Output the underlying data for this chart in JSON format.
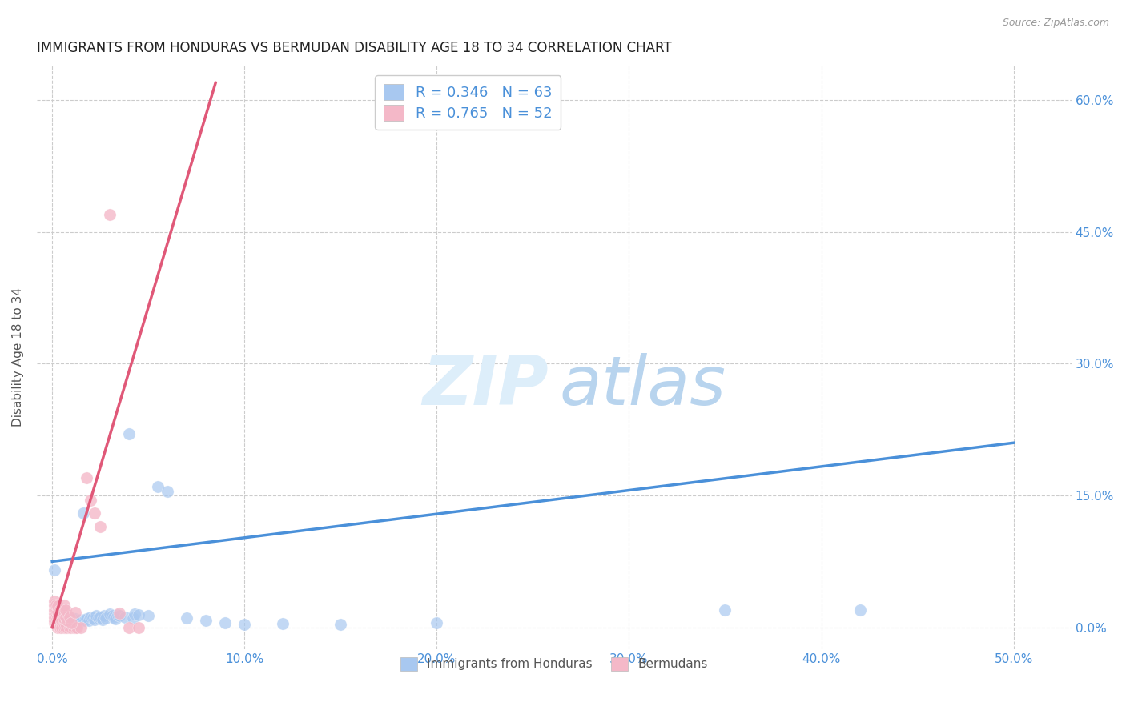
{
  "title": "IMMIGRANTS FROM HONDURAS VS BERMUDAN DISABILITY AGE 18 TO 34 CORRELATION CHART",
  "source": "Source: ZipAtlas.com",
  "ylabel": "Disability Age 18 to 34",
  "x_tick_labels": [
    "0.0%",
    "10.0%",
    "20.0%",
    "30.0%",
    "40.0%",
    "50.0%"
  ],
  "x_tick_values": [
    0.0,
    0.1,
    0.2,
    0.3,
    0.4,
    0.5
  ],
  "y_tick_labels": [
    "0.0%",
    "15.0%",
    "30.0%",
    "45.0%",
    "60.0%"
  ],
  "y_tick_values": [
    0.0,
    0.15,
    0.3,
    0.45,
    0.6
  ],
  "xlim": [
    -0.008,
    0.53
  ],
  "ylim": [
    -0.025,
    0.64
  ],
  "legend_entry1": "R = 0.346   N = 63",
  "legend_entry2": "R = 0.765   N = 52",
  "legend_label1": "Immigrants from Honduras",
  "legend_label2": "Bermudans",
  "color_blue": "#a8c8f0",
  "color_pink": "#f4b8c8",
  "color_line_blue": "#4a90d9",
  "color_line_pink": "#e05878",
  "watermark_zip": "ZIP",
  "watermark_atlas": "atlas",
  "title_color": "#222222",
  "axis_color": "#4a90d9",
  "blue_trend_x": [
    0.0,
    0.5
  ],
  "blue_trend_y": [
    0.075,
    0.21
  ],
  "pink_trend_x": [
    0.0,
    0.085
  ],
  "pink_trend_y": [
    0.0,
    0.62
  ],
  "blue_scatter": [
    [
      0.001,
      0.065
    ],
    [
      0.002,
      0.005
    ],
    [
      0.002,
      0.01
    ],
    [
      0.003,
      0.005
    ],
    [
      0.003,
      0.008
    ],
    [
      0.004,
      0.006
    ],
    [
      0.004,
      0.01
    ],
    [
      0.005,
      0.005
    ],
    [
      0.005,
      0.008
    ],
    [
      0.005,
      0.012
    ],
    [
      0.006,
      0.006
    ],
    [
      0.006,
      0.009
    ],
    [
      0.007,
      0.005
    ],
    [
      0.007,
      0.008
    ],
    [
      0.007,
      0.011
    ],
    [
      0.008,
      0.007
    ],
    [
      0.008,
      0.01
    ],
    [
      0.009,
      0.006
    ],
    [
      0.009,
      0.009
    ],
    [
      0.01,
      0.007
    ],
    [
      0.01,
      0.011
    ],
    [
      0.011,
      0.008
    ],
    [
      0.012,
      0.006
    ],
    [
      0.012,
      0.01
    ],
    [
      0.013,
      0.008
    ],
    [
      0.014,
      0.007
    ],
    [
      0.015,
      0.009
    ],
    [
      0.016,
      0.13
    ],
    [
      0.017,
      0.008
    ],
    [
      0.018,
      0.01
    ],
    [
      0.019,
      0.008
    ],
    [
      0.02,
      0.012
    ],
    [
      0.021,
      0.011
    ],
    [
      0.022,
      0.009
    ],
    [
      0.023,
      0.013
    ],
    [
      0.024,
      0.011
    ],
    [
      0.025,
      0.012
    ],
    [
      0.026,
      0.009
    ],
    [
      0.027,
      0.013
    ],
    [
      0.028,
      0.011
    ],
    [
      0.03,
      0.015
    ],
    [
      0.031,
      0.013
    ],
    [
      0.032,
      0.012
    ],
    [
      0.033,
      0.01
    ],
    [
      0.034,
      0.014
    ],
    [
      0.035,
      0.013
    ],
    [
      0.038,
      0.012
    ],
    [
      0.04,
      0.22
    ],
    [
      0.042,
      0.011
    ],
    [
      0.043,
      0.015
    ],
    [
      0.045,
      0.014
    ],
    [
      0.05,
      0.013
    ],
    [
      0.055,
      0.16
    ],
    [
      0.06,
      0.155
    ],
    [
      0.07,
      0.011
    ],
    [
      0.08,
      0.008
    ],
    [
      0.09,
      0.005
    ],
    [
      0.1,
      0.003
    ],
    [
      0.12,
      0.004
    ],
    [
      0.15,
      0.003
    ],
    [
      0.2,
      0.005
    ],
    [
      0.35,
      0.02
    ],
    [
      0.42,
      0.02
    ]
  ],
  "pink_scatter": [
    [
      0.001,
      0.005
    ],
    [
      0.001,
      0.008
    ],
    [
      0.001,
      0.012
    ],
    [
      0.001,
      0.016
    ],
    [
      0.001,
      0.02
    ],
    [
      0.001,
      0.025
    ],
    [
      0.001,
      0.03
    ],
    [
      0.002,
      0.005
    ],
    [
      0.002,
      0.008
    ],
    [
      0.002,
      0.012
    ],
    [
      0.002,
      0.016
    ],
    [
      0.002,
      0.02
    ],
    [
      0.002,
      0.025
    ],
    [
      0.003,
      0.005
    ],
    [
      0.003,
      0.008
    ],
    [
      0.003,
      0.012
    ],
    [
      0.003,
      0.018
    ],
    [
      0.003,
      0.024
    ],
    [
      0.003,
      0.0
    ],
    [
      0.004,
      0.006
    ],
    [
      0.004,
      0.012
    ],
    [
      0.004,
      0.02
    ],
    [
      0.004,
      0.0
    ],
    [
      0.005,
      0.007
    ],
    [
      0.005,
      0.015
    ],
    [
      0.005,
      0.0
    ],
    [
      0.006,
      0.01
    ],
    [
      0.006,
      0.0
    ],
    [
      0.007,
      0.0
    ],
    [
      0.008,
      0.0
    ],
    [
      0.009,
      0.0
    ],
    [
      0.01,
      0.0
    ],
    [
      0.011,
      0.0
    ],
    [
      0.012,
      0.0
    ],
    [
      0.013,
      0.0
    ],
    [
      0.015,
      0.0
    ],
    [
      0.018,
      0.17
    ],
    [
      0.02,
      0.145
    ],
    [
      0.022,
      0.13
    ],
    [
      0.025,
      0.115
    ],
    [
      0.03,
      0.47
    ],
    [
      0.035,
      0.016
    ],
    [
      0.04,
      0.0
    ],
    [
      0.045,
      0.0
    ],
    [
      0.006,
      0.018
    ],
    [
      0.006,
      0.025
    ],
    [
      0.007,
      0.012
    ],
    [
      0.007,
      0.02
    ],
    [
      0.008,
      0.008
    ],
    [
      0.009,
      0.012
    ],
    [
      0.01,
      0.005
    ],
    [
      0.012,
      0.017
    ]
  ]
}
